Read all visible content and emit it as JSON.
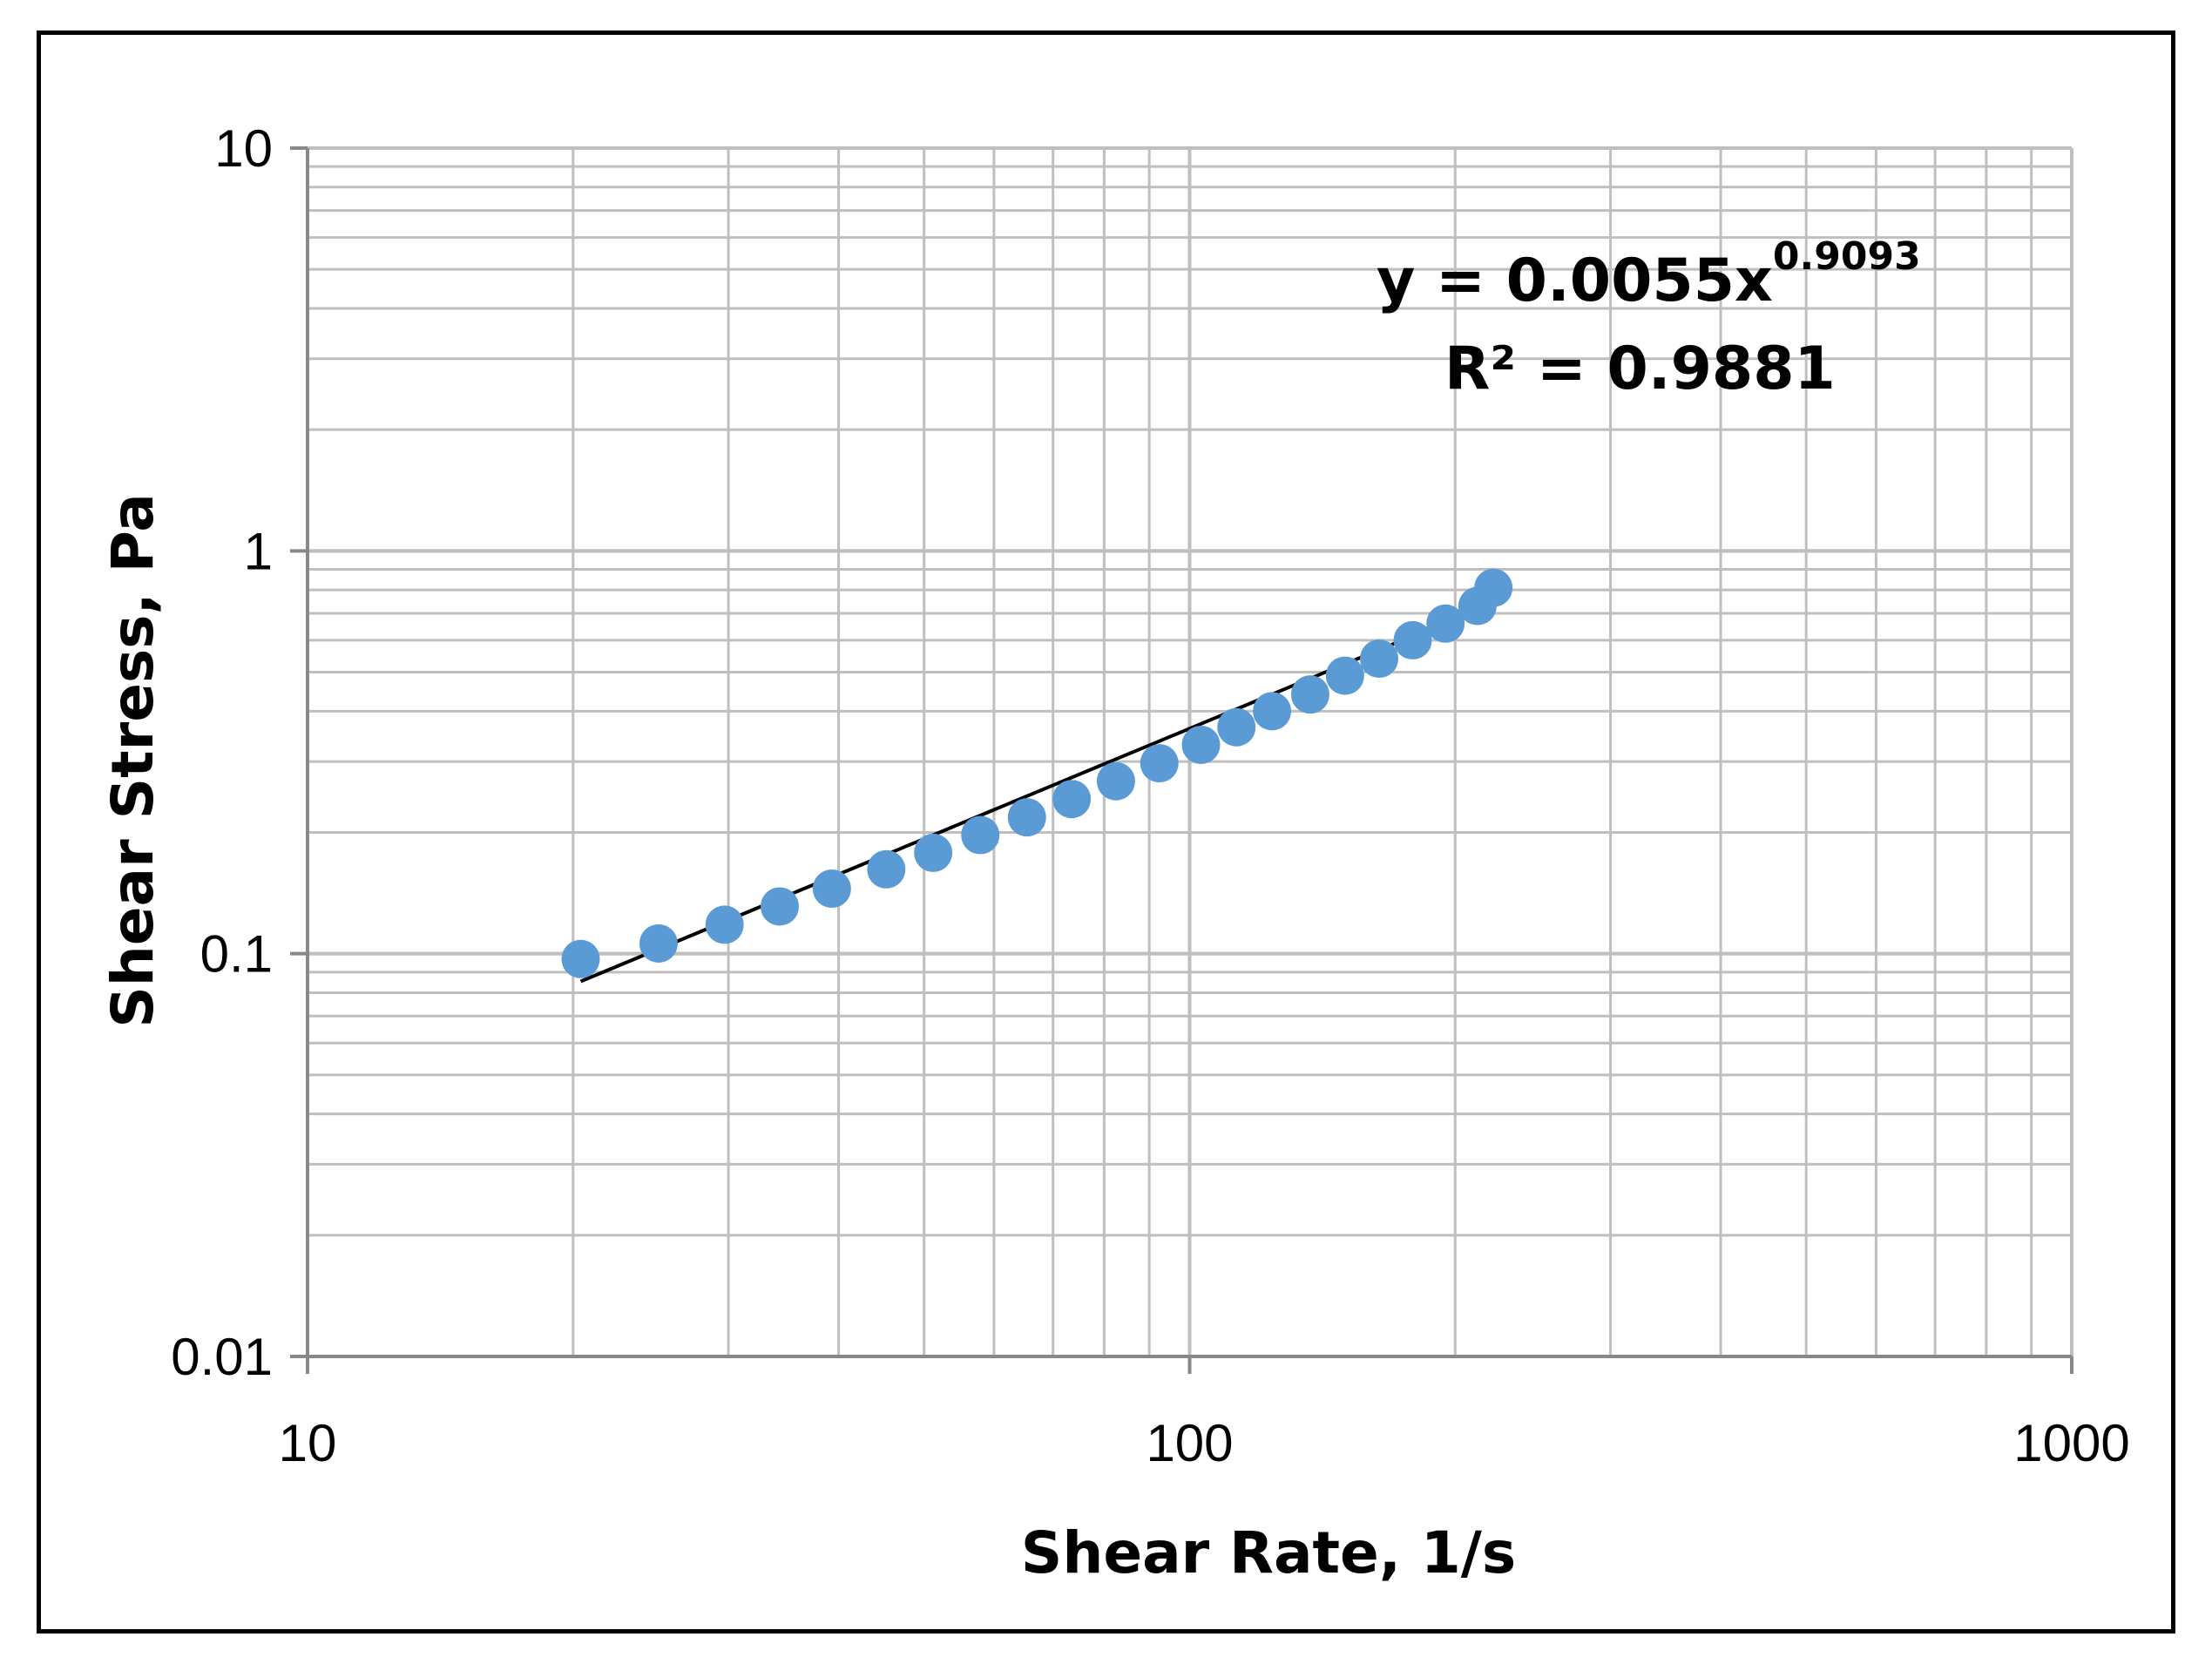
{
  "chart_data": {
    "type": "scatter",
    "title": "",
    "xlabel": "Shear Rate, 1/s",
    "ylabel": "Shear Stress, Pa",
    "xscale": "log",
    "yscale": "log",
    "xlim": [
      10,
      1000
    ],
    "ylim": [
      0.01,
      10
    ],
    "xticks": [
      "10",
      "100",
      "1000"
    ],
    "yticks": [
      "10",
      "1",
      "0.1",
      "0.01"
    ],
    "grid": true,
    "legend": "none",
    "marker_color": "#5b9bd5",
    "trendline_color": "#000000",
    "series": [
      {
        "x": [
          20.4,
          25,
          29.7,
          34.3,
          39.3,
          45.3,
          51.2,
          57.9,
          65.4,
          73.5,
          82.5,
          92.4,
          103,
          113,
          124,
          137,
          150,
          164,
          179,
          195,
          212,
          221
        ],
        "y": [
          0.097,
          0.106,
          0.118,
          0.131,
          0.145,
          0.162,
          0.178,
          0.197,
          0.218,
          0.242,
          0.268,
          0.297,
          0.33,
          0.365,
          0.4,
          0.44,
          0.49,
          0.54,
          0.6,
          0.66,
          0.73,
          0.81
        ]
      }
    ],
    "trendline": {
      "type": "power",
      "coefficient": 0.0055,
      "exponent": 0.9093,
      "x_range": [
        20.4,
        221
      ],
      "equation_text": "y = 0.0055x",
      "equation_exponent_text": "0.9093",
      "r2_text": "R² = 0.9881"
    }
  }
}
